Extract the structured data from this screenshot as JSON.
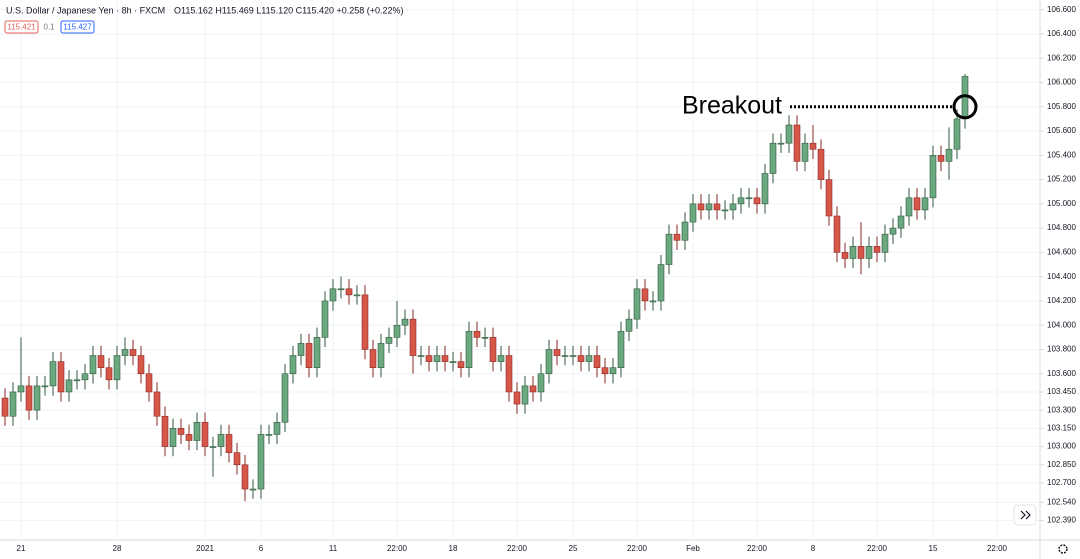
{
  "header": {
    "symbol": "U.S. Dollar / Japanese Yen · 8h · FXCM",
    "ohlc": "O115.162 H115.469 L115.120 C115.420 +0.258 (+0.22%)",
    "bid": "115.421",
    "spread": "0.1",
    "ask": "115.427"
  },
  "chart_data": {
    "type": "candlestick",
    "annotation": "Breakout",
    "breakout_level": 105.8,
    "up_color": "#6ba77f",
    "down_color": "#d6564a",
    "categories": [
      null,
      null,
      "21",
      null,
      null,
      null,
      null,
      null,
      null,
      null,
      null,
      null,
      null,
      null,
      "28",
      null,
      null,
      null,
      null,
      null,
      null,
      null,
      null,
      null,
      null,
      "2021",
      null,
      null,
      null,
      null,
      null,
      null,
      "6",
      null,
      null,
      null,
      null,
      null,
      null,
      null,
      null,
      "11",
      null,
      null,
      null,
      null,
      null,
      null,
      null,
      "22:00",
      null,
      null,
      null,
      null,
      null,
      null,
      "18",
      null,
      null,
      null,
      null,
      null,
      null,
      null,
      "22:00",
      null,
      null,
      null,
      null,
      null,
      null,
      "25",
      null,
      null,
      null,
      null,
      null,
      null,
      null,
      "22:00",
      null,
      null,
      null,
      null,
      null,
      null,
      "Feb",
      null,
      null,
      null,
      null,
      null,
      null,
      null,
      "22:00",
      null,
      null,
      null,
      null,
      null,
      null,
      "8",
      null,
      null,
      null,
      null,
      null,
      null,
      null,
      "22:00",
      null,
      null,
      null,
      null,
      null,
      null,
      "15",
      null,
      null,
      null,
      null,
      null,
      null,
      null,
      "22:00"
    ],
    "open": [
      103.4,
      103.25,
      103.45,
      103.5,
      103.3,
      103.5,
      103.5,
      103.7,
      103.45,
      103.55,
      103.55,
      103.6,
      103.75,
      103.65,
      103.55,
      103.75,
      103.8,
      103.75,
      103.6,
      103.45,
      103.25,
      103.0,
      103.15,
      103.1,
      103.05,
      103.2,
      103.0,
      103.0,
      103.1,
      102.95,
      102.85,
      102.65,
      102.65,
      103.1,
      103.1,
      103.2,
      103.6,
      103.75,
      103.85,
      103.65,
      103.9,
      104.2,
      104.3,
      104.3,
      104.25,
      104.25,
      103.8,
      103.65,
      103.85,
      103.9,
      104.0,
      104.05,
      103.75,
      103.75,
      103.7,
      103.75,
      103.7,
      103.7,
      103.65,
      103.95,
      103.9,
      103.9,
      103.7,
      103.75,
      103.45,
      103.35,
      103.5,
      103.45,
      103.6,
      103.8,
      103.75,
      103.75,
      103.75,
      103.7,
      103.75,
      103.65,
      103.6,
      103.65,
      103.95,
      104.05,
      104.3,
      104.2,
      104.2,
      104.5,
      104.75,
      104.7,
      104.85,
      105.0,
      104.95,
      105.0,
      104.95,
      104.95,
      105.0,
      105.05,
      105.05,
      105.0,
      105.25,
      105.5,
      105.5,
      105.65,
      105.35,
      105.5,
      105.45,
      105.2,
      104.9,
      104.6,
      104.55,
      104.65,
      104.55,
      104.65,
      104.6,
      104.75,
      104.8,
      104.9,
      105.05,
      104.95,
      105.05,
      105.4,
      105.35,
      105.45,
      105.7,
      null,
      null,
      null,
      null
    ],
    "high": [
      103.48,
      103.53,
      103.9,
      103.58,
      103.58,
      103.58,
      103.78,
      103.78,
      103.63,
      103.63,
      103.68,
      103.83,
      103.83,
      103.73,
      103.83,
      103.9,
      103.88,
      103.83,
      103.68,
      103.53,
      103.33,
      103.23,
      103.23,
      103.18,
      103.28,
      103.28,
      103.08,
      103.18,
      103.18,
      103.03,
      102.93,
      102.73,
      103.18,
      103.18,
      103.28,
      103.68,
      103.83,
      103.93,
      103.93,
      103.98,
      104.28,
      104.38,
      104.4,
      104.38,
      104.33,
      104.33,
      103.88,
      103.93,
      103.98,
      104.2,
      104.13,
      104.13,
      103.83,
      103.83,
      103.83,
      103.83,
      103.78,
      103.78,
      104.03,
      104.03,
      103.98,
      103.98,
      103.83,
      103.83,
      103.53,
      103.58,
      103.58,
      103.68,
      103.88,
      103.88,
      103.83,
      103.83,
      103.83,
      103.83,
      103.83,
      103.73,
      103.73,
      104.03,
      104.13,
      104.38,
      104.38,
      104.28,
      104.58,
      104.83,
      104.83,
      104.93,
      105.08,
      105.08,
      105.08,
      105.08,
      105.03,
      105.08,
      105.13,
      105.13,
      105.13,
      105.33,
      105.58,
      105.58,
      105.73,
      105.73,
      105.58,
      105.65,
      105.53,
      105.28,
      104.98,
      104.68,
      104.73,
      104.85,
      104.73,
      104.73,
      104.83,
      104.88,
      104.98,
      105.13,
      105.13,
      105.13,
      105.48,
      105.48,
      105.63,
      105.78,
      106.07,
      null,
      null,
      null,
      null
    ],
    "low": [
      103.17,
      103.17,
      103.37,
      103.22,
      103.22,
      103.42,
      103.42,
      103.37,
      103.37,
      103.47,
      103.47,
      103.52,
      103.57,
      103.47,
      103.47,
      103.67,
      103.67,
      103.52,
      103.37,
      103.17,
      102.92,
      102.92,
      103.02,
      102.97,
      102.97,
      102.92,
      102.75,
      102.92,
      102.87,
      102.77,
      102.55,
      102.57,
      102.57,
      103.02,
      103.02,
      103.12,
      103.52,
      103.67,
      103.57,
      103.57,
      103.82,
      104.12,
      104.22,
      104.17,
      104.17,
      103.72,
      103.57,
      103.57,
      103.77,
      103.82,
      103.92,
      103.6,
      103.67,
      103.62,
      103.62,
      103.62,
      103.62,
      103.57,
      103.57,
      103.82,
      103.82,
      103.62,
      103.62,
      103.37,
      103.27,
      103.27,
      103.37,
      103.37,
      103.52,
      103.67,
      103.67,
      103.67,
      103.62,
      103.62,
      103.57,
      103.52,
      103.52,
      103.57,
      103.87,
      103.97,
      104.12,
      104.12,
      104.12,
      104.42,
      104.62,
      104.62,
      104.77,
      104.87,
      104.87,
      104.87,
      104.87,
      104.87,
      104.92,
      104.97,
      104.92,
      104.92,
      105.17,
      105.42,
      105.42,
      105.27,
      105.27,
      105.37,
      105.12,
      104.82,
      104.52,
      104.47,
      104.47,
      104.42,
      104.47,
      104.52,
      104.52,
      104.67,
      104.72,
      104.82,
      104.87,
      104.87,
      104.97,
      105.27,
      105.2,
      105.37,
      105.62,
      null,
      null,
      null,
      null
    ],
    "close": [
      103.25,
      103.45,
      103.5,
      103.3,
      103.5,
      103.5,
      103.7,
      103.45,
      103.55,
      103.55,
      103.6,
      103.75,
      103.65,
      103.55,
      103.75,
      103.8,
      103.75,
      103.6,
      103.45,
      103.25,
      103.0,
      103.15,
      103.1,
      103.05,
      103.2,
      103.0,
      103.0,
      103.1,
      102.95,
      102.85,
      102.65,
      102.65,
      103.1,
      103.1,
      103.2,
      103.6,
      103.75,
      103.85,
      103.65,
      103.9,
      104.2,
      104.3,
      104.3,
      104.25,
      104.25,
      103.8,
      103.65,
      103.85,
      103.9,
      104.0,
      104.05,
      103.75,
      103.75,
      103.7,
      103.75,
      103.7,
      103.7,
      103.65,
      103.95,
      103.9,
      103.9,
      103.7,
      103.75,
      103.45,
      103.35,
      103.5,
      103.45,
      103.6,
      103.8,
      103.75,
      103.75,
      103.75,
      103.7,
      103.75,
      103.65,
      103.6,
      103.65,
      103.95,
      104.05,
      104.3,
      104.2,
      104.2,
      104.5,
      104.75,
      104.7,
      104.85,
      105.0,
      104.95,
      105.0,
      104.95,
      104.95,
      105.0,
      105.05,
      105.05,
      105.0,
      105.25,
      105.5,
      105.5,
      105.65,
      105.35,
      105.5,
      105.45,
      105.2,
      104.9,
      104.6,
      104.55,
      104.65,
      104.55,
      104.65,
      104.6,
      104.75,
      104.8,
      104.9,
      105.05,
      104.95,
      105.05,
      105.4,
      105.35,
      105.45,
      105.7,
      106.05,
      null,
      null,
      null,
      null
    ],
    "ylim": [
      102.23,
      106.68
    ],
    "yticks": [
      {
        "value": 106.6,
        "label": "106.600"
      },
      {
        "value": 106.4,
        "label": "106.400"
      },
      {
        "value": 106.2,
        "label": "106.200"
      },
      {
        "value": 106.0,
        "label": "106.000"
      },
      {
        "value": 105.8,
        "label": "105.800"
      },
      {
        "value": 105.6,
        "label": "105.600"
      },
      {
        "value": 105.4,
        "label": "105.400"
      },
      {
        "value": 105.2,
        "label": "105.200"
      },
      {
        "value": 105.0,
        "label": "105.000"
      },
      {
        "value": 104.8,
        "label": "104.800"
      },
      {
        "value": 104.6,
        "label": "104.600"
      },
      {
        "value": 104.4,
        "label": "104.400"
      },
      {
        "value": 104.2,
        "label": "104.200"
      },
      {
        "value": 104.0,
        "label": "104.000"
      },
      {
        "value": 103.8,
        "label": "103.800"
      },
      {
        "value": 103.6,
        "label": "103.600"
      },
      {
        "value": 103.45,
        "label": "103.450"
      },
      {
        "value": 103.3,
        "label": "103.300"
      },
      {
        "value": 103.15,
        "label": "103.150"
      },
      {
        "value": 103.0,
        "label": "103.000"
      },
      {
        "value": 102.85,
        "label": "102.850"
      },
      {
        "value": 102.7,
        "label": "102.700"
      },
      {
        "value": 102.54,
        "label": "102.540"
      },
      {
        "value": 102.39,
        "label": "102.390"
      }
    ],
    "grid": true
  }
}
